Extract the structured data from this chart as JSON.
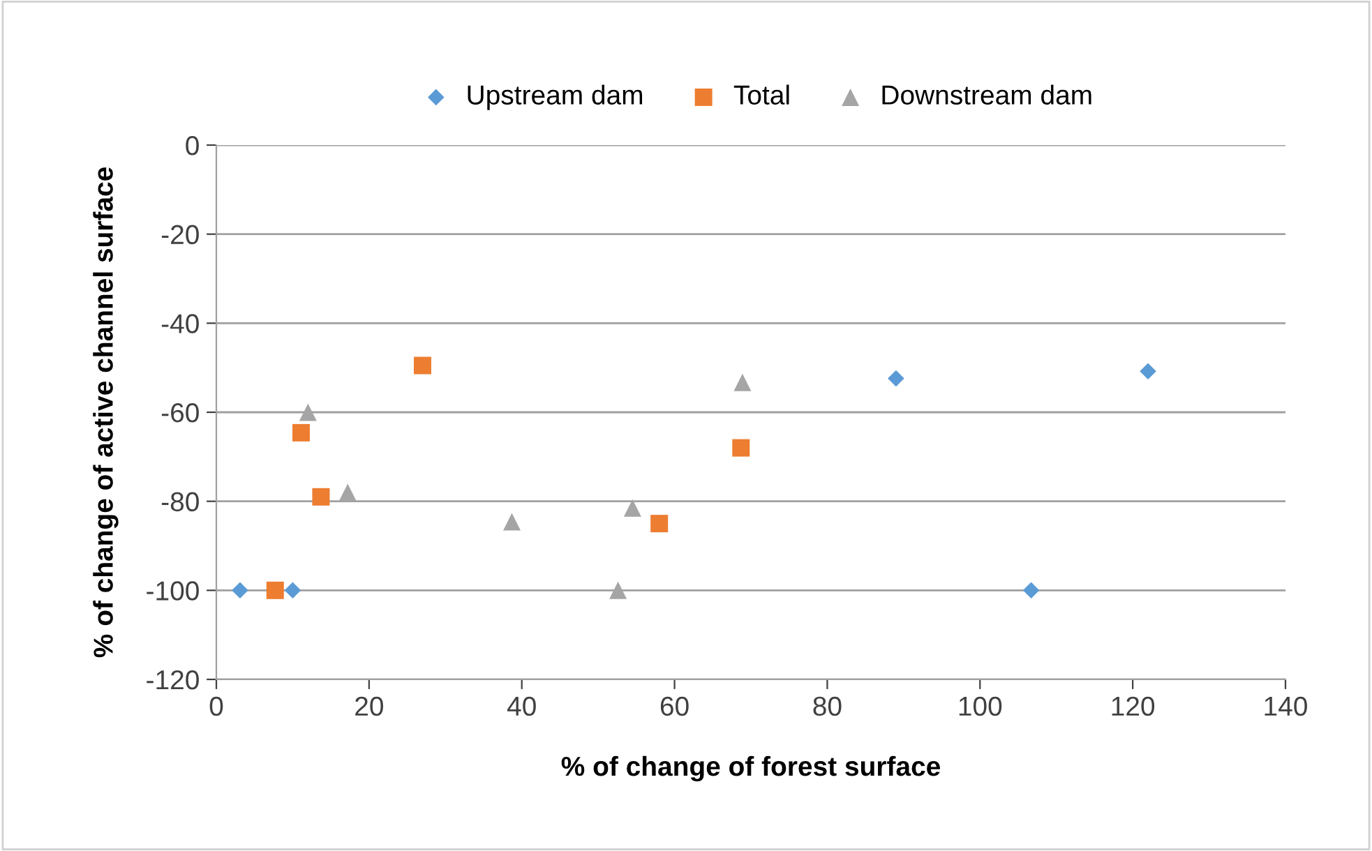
{
  "chart_data": {
    "type": "scatter",
    "xlabel": "% of change of forest surface",
    "ylabel": "% of change of active channel surface",
    "xlim": [
      0,
      140
    ],
    "xticks": [
      0,
      20,
      40,
      60,
      80,
      100,
      120,
      140
    ],
    "ylim": [
      -120,
      0
    ],
    "yticks": [
      -120,
      -100,
      -80,
      -60,
      -40,
      -20,
      0
    ],
    "grid": "y",
    "legend": "top",
    "series": [
      {
        "name": "Upstream dam",
        "color": "#5b9bd5",
        "marker": "diamond",
        "x": [
          3.1,
          10,
          89,
          122,
          106.7
        ],
        "values": [
          -100,
          -100,
          -52.4,
          -50.8,
          -100
        ]
      },
      {
        "name": "Total",
        "color": "#ed7d31",
        "marker": "square",
        "x": [
          7.7,
          11.1,
          13.7,
          27,
          58,
          68.7
        ],
        "values": [
          -100,
          -64.6,
          -79,
          -49.5,
          -85,
          -68
        ]
      },
      {
        "name": "Downstream dam",
        "color": "#a5a5a5",
        "marker": "triangle",
        "x": [
          12,
          17.2,
          38.7,
          54.5,
          52.6,
          68.9
        ],
        "values": [
          -60,
          -78,
          -84.6,
          -81.5,
          -100,
          -53.3
        ]
      }
    ]
  }
}
